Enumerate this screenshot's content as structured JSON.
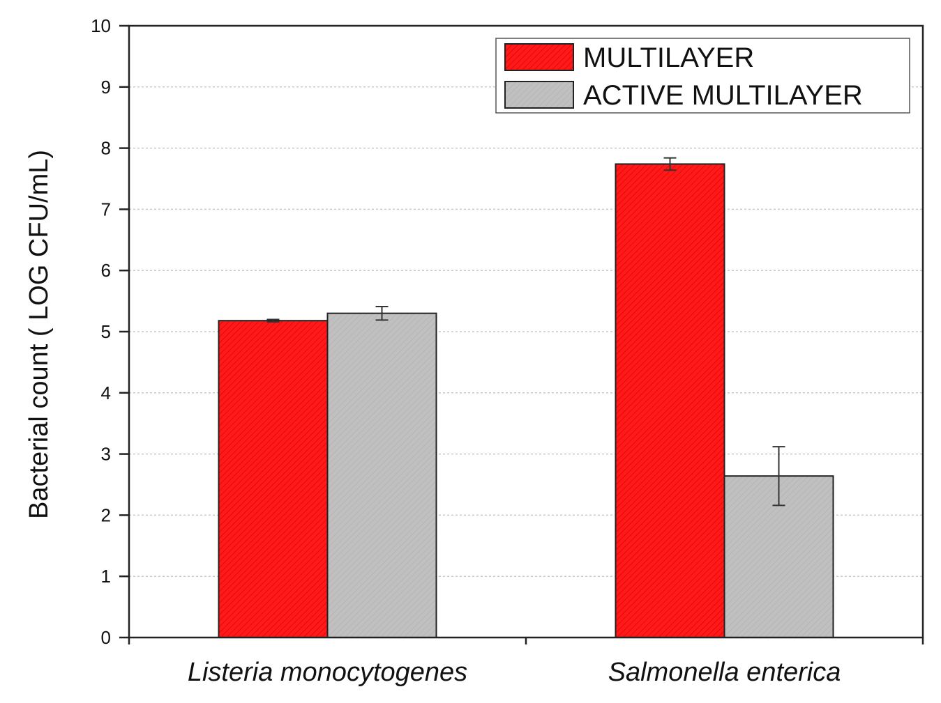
{
  "chart_data": {
    "type": "bar",
    "title": "",
    "xlabel": "",
    "ylabel": "Bacterial count ( LOG CFU/mL)",
    "ylim": [
      0,
      10
    ],
    "yticks": [
      "0",
      "1",
      "2",
      "3",
      "4",
      "5",
      "6",
      "7",
      "8",
      "9",
      "10"
    ],
    "categories": [
      "Listeria monocytogenes",
      "Salmonella enterica"
    ],
    "series": [
      {
        "name": "MULTILAYER",
        "color": "#ff1a1a",
        "values": [
          5.18,
          7.74
        ],
        "errors": [
          0.02,
          0.1
        ]
      },
      {
        "name": "ACTIVE MULTILAYER",
        "color": "#c0c0c0",
        "values": [
          5.3,
          2.64
        ],
        "errors": [
          0.11,
          0.48
        ]
      }
    ],
    "grid": true,
    "legend_position": "top-right"
  }
}
